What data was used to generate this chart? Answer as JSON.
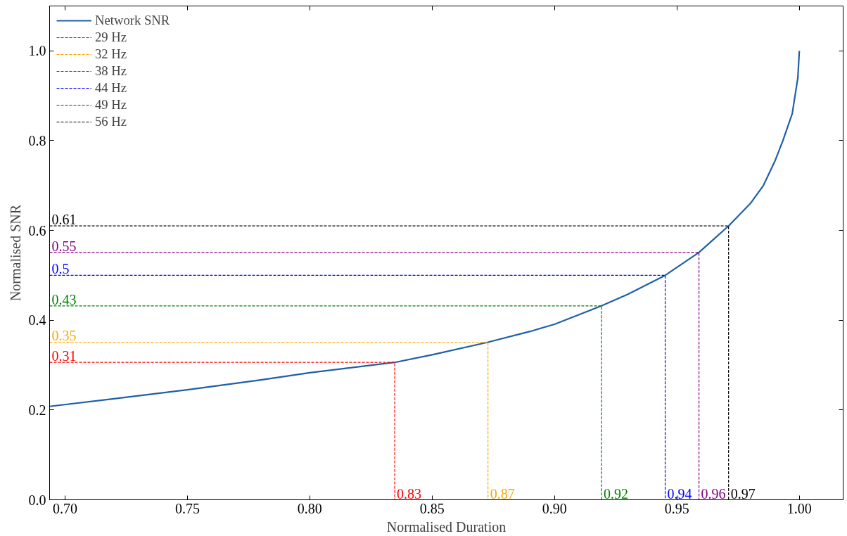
{
  "chart_data": {
    "type": "line",
    "xlabel": "Normalised Duration",
    "ylabel": "Normalised SNR",
    "xlim": [
      0.6937,
      1.0179
    ],
    "ylim": [
      0,
      1.1
    ],
    "xticks": [
      {
        "value": 0.7,
        "label": "0.70"
      },
      {
        "value": 0.75,
        "label": "0.75"
      },
      {
        "value": 0.8,
        "label": "0.80"
      },
      {
        "value": 0.85,
        "label": "0.85"
      },
      {
        "value": 0.9,
        "label": "0.90"
      },
      {
        "value": 0.95,
        "label": "0.95"
      },
      {
        "value": 1.0,
        "label": "1.00"
      }
    ],
    "yticks": [
      {
        "value": 0,
        "label": "0.0"
      },
      0.2,
      0.4,
      0.6,
      0.8,
      {
        "value": 1.0,
        "label": "1.0"
      }
    ],
    "annotations": [
      {
        "text": "0.83",
        "x": 0.8347,
        "y": 0
      },
      {
        "text": "0.87",
        "x": 0.8728,
        "y": 0
      },
      {
        "text": "0.92",
        "x": 0.9192,
        "y": 0
      },
      {
        "text": "0.94",
        "x": 0.9452,
        "y": 0
      },
      {
        "text": "0.96",
        "x": 0.959,
        "y": 0
      },
      {
        "text": "0.97",
        "x": 0.9711,
        "y": 0
      }
    ],
    "grid": false,
    "legend": "top left",
    "series": [
      {
        "name": "Network SNR",
        "color": "#1f5fa8",
        "line_style": "solid",
        "x": [
          0.6937,
          0.72,
          0.75,
          0.78,
          0.8,
          0.8347,
          0.85,
          0.8728,
          0.89,
          0.9,
          0.9192,
          0.93,
          0.9452,
          0.959,
          0.9711,
          0.98,
          0.9853,
          0.99,
          0.9933,
          0.9971,
          0.9994,
          1.0
        ],
        "values": [
          0.208,
          0.225,
          0.245,
          0.267,
          0.283,
          0.306,
          0.323,
          0.351,
          0.375,
          0.391,
          0.432,
          0.458,
          0.5,
          0.551,
          0.61,
          0.66,
          0.7,
          0.754,
          0.8,
          0.86,
          0.94,
          1.0
        ]
      },
      {
        "name": "29 Hz",
        "color": "#ff0000",
        "line_style": "dashed",
        "x": [
          0.6937,
          0.8347,
          0.8347
        ],
        "values": [
          0.306,
          0.306,
          0
        ],
        "value_labels": [
          "0.31",
          null,
          null
        ]
      },
      {
        "name": "32 Hz",
        "color": "#ffa500",
        "line_style": "dashed",
        "x": [
          0.6937,
          0.8728,
          0.8728
        ],
        "values": [
          0.351,
          0.351,
          0
        ],
        "value_labels": [
          "0.35",
          null,
          null
        ]
      },
      {
        "name": "38 Hz",
        "color": "#008000",
        "line_style": "dashed",
        "x": [
          0.6937,
          0.9192,
          0.9192
        ],
        "values": [
          0.432,
          0.432,
          0
        ],
        "value_labels": [
          "0.43",
          null,
          null
        ]
      },
      {
        "name": "44 Hz",
        "color": "#0000ff",
        "line_style": "dashed",
        "x": [
          0.6937,
          0.9452,
          0.9452
        ],
        "values": [
          0.5,
          0.5,
          0
        ],
        "value_labels": [
          "0.5",
          null,
          null
        ]
      },
      {
        "name": "49 Hz",
        "color": "#800080",
        "line_style": "dashed",
        "x": [
          0.6937,
          0.959,
          0.959
        ],
        "values": [
          0.551,
          0.551,
          0
        ],
        "value_labels": [
          "0.55",
          null,
          null
        ]
      },
      {
        "name": "56 Hz",
        "color": "#000000",
        "line_style": "dashed",
        "x": [
          0.6937,
          0.9711,
          0.9711
        ],
        "values": [
          0.61,
          0.61,
          0
        ],
        "value_labels": [
          "0.61",
          null,
          null
        ]
      }
    ]
  }
}
